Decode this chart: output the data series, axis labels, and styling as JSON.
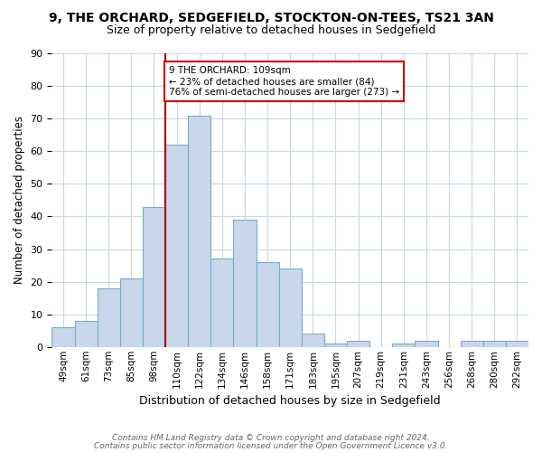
{
  "title_line1": "9, THE ORCHARD, SEDGEFIELD, STOCKTON-ON-TEES, TS21 3AN",
  "title_line2": "Size of property relative to detached houses in Sedgefield",
  "xlabel": "Distribution of detached houses by size in Sedgefield",
  "ylabel": "Number of detached properties",
  "categories": [
    "49sqm",
    "61sqm",
    "73sqm",
    "85sqm",
    "98sqm",
    "110sqm",
    "122sqm",
    "134sqm",
    "146sqm",
    "158sqm",
    "171sqm",
    "183sqm",
    "195sqm",
    "207sqm",
    "219sqm",
    "231sqm",
    "243sqm",
    "256sqm",
    "268sqm",
    "280sqm",
    "292sqm"
  ],
  "values": [
    6,
    8,
    18,
    21,
    43,
    62,
    71,
    27,
    39,
    26,
    24,
    4,
    1,
    2,
    0,
    1,
    2,
    0,
    2,
    2,
    2
  ],
  "bar_color": "#c8d8ea",
  "bar_edge_color": "#7aaaca",
  "highlight_index": 5,
  "highlight_line_color": "#aa0000",
  "ylim": [
    0,
    90
  ],
  "yticks": [
    0,
    10,
    20,
    30,
    40,
    50,
    60,
    70,
    80,
    90
  ],
  "annotation_line1": "9 THE ORCHARD: 109sqm",
  "annotation_line2": "← 23% of detached houses are smaller (84)",
  "annotation_line3": "76% of semi-detached houses are larger (273) →",
  "annotation_box_edgecolor": "#cc0000",
  "footer_line1": "Contains HM Land Registry data © Crown copyright and database right 2024.",
  "footer_line2": "Contains public sector information licensed under the Open Government Licence v3.0.",
  "background_color": "#ffffff",
  "grid_color": "#c8d8e8"
}
